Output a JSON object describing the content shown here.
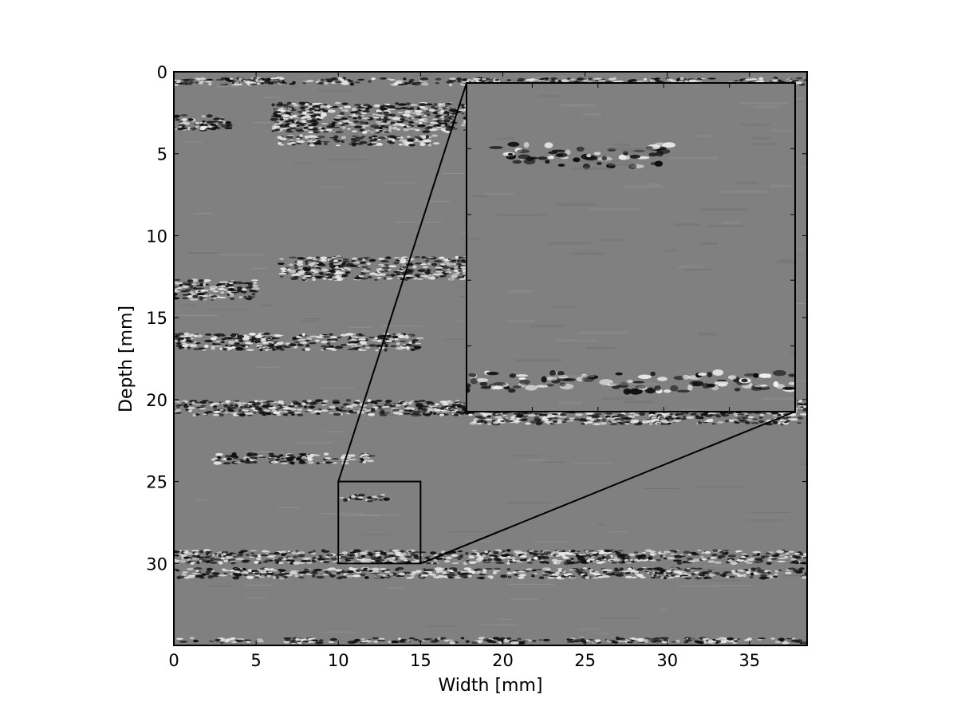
{
  "chart_data": {
    "type": "heatmap",
    "description_image": "grayscale ultrasound B-mode image with zoomed inset",
    "xlabel": "Width [mm]",
    "ylabel": "Depth [mm]",
    "xlim": [
      0,
      38.5
    ],
    "ylim": [
      35,
      0
    ],
    "y_axis_inverted": true,
    "x_ticks": [
      "0",
      "5",
      "10",
      "15",
      "20",
      "25",
      "30",
      "35"
    ],
    "y_ticks": [
      "0",
      "5",
      "10",
      "15",
      "20",
      "25",
      "30"
    ],
    "colormap": "gray",
    "background_gray": "#7f7f7f",
    "grid": false,
    "speckle_bands": [
      {
        "x": [
          0,
          38.5
        ],
        "y": 0.6,
        "thickness": 0.4
      },
      {
        "x": [
          0,
          3.5
        ],
        "y": 3.1,
        "thickness": 0.9
      },
      {
        "x": [
          6,
          18
        ],
        "y": 2.8,
        "thickness": 1.8
      },
      {
        "x": [
          6,
          16
        ],
        "y": 4.2,
        "thickness": 0.6
      },
      {
        "x": [
          6.5,
          18
        ],
        "y": 12.0,
        "thickness": 1.4
      },
      {
        "x": [
          0,
          5
        ],
        "y": 13.3,
        "thickness": 1.2
      },
      {
        "x": [
          0,
          15
        ],
        "y": 16.5,
        "thickness": 1.0
      },
      {
        "x": [
          0,
          38.5
        ],
        "y": 20.5,
        "thickness": 0.9
      },
      {
        "x": [
          18,
          38.5
        ],
        "y": 21.2,
        "thickness": 0.6
      },
      {
        "x": [
          2,
          12
        ],
        "y": 23.6,
        "thickness": 0.6
      },
      {
        "x": [
          10,
          13
        ],
        "y": 26.0,
        "thickness": 0.4
      },
      {
        "x": [
          0,
          38.5
        ],
        "y": 29.6,
        "thickness": 0.8
      },
      {
        "x": [
          0,
          38.5
        ],
        "y": 30.6,
        "thickness": 0.6
      },
      {
        "x": [
          0,
          38.5
        ],
        "y": 34.7,
        "thickness": 0.3
      }
    ],
    "zoom_region": {
      "x": [
        10,
        15
      ],
      "y": [
        25,
        30
      ]
    },
    "inset": {
      "x_ticks_count": 5,
      "y_ticks_count": 5,
      "tick_labels": false,
      "speckle_bands": [
        {
          "x": [
            0.08,
            0.62
          ],
          "y": 0.22,
          "thickness": 0.07
        },
        {
          "x": [
            0.0,
            1.0
          ],
          "y": 0.91,
          "thickness": 0.06
        }
      ]
    },
    "colors": {
      "frame": "#000000",
      "background": "#808080"
    }
  }
}
